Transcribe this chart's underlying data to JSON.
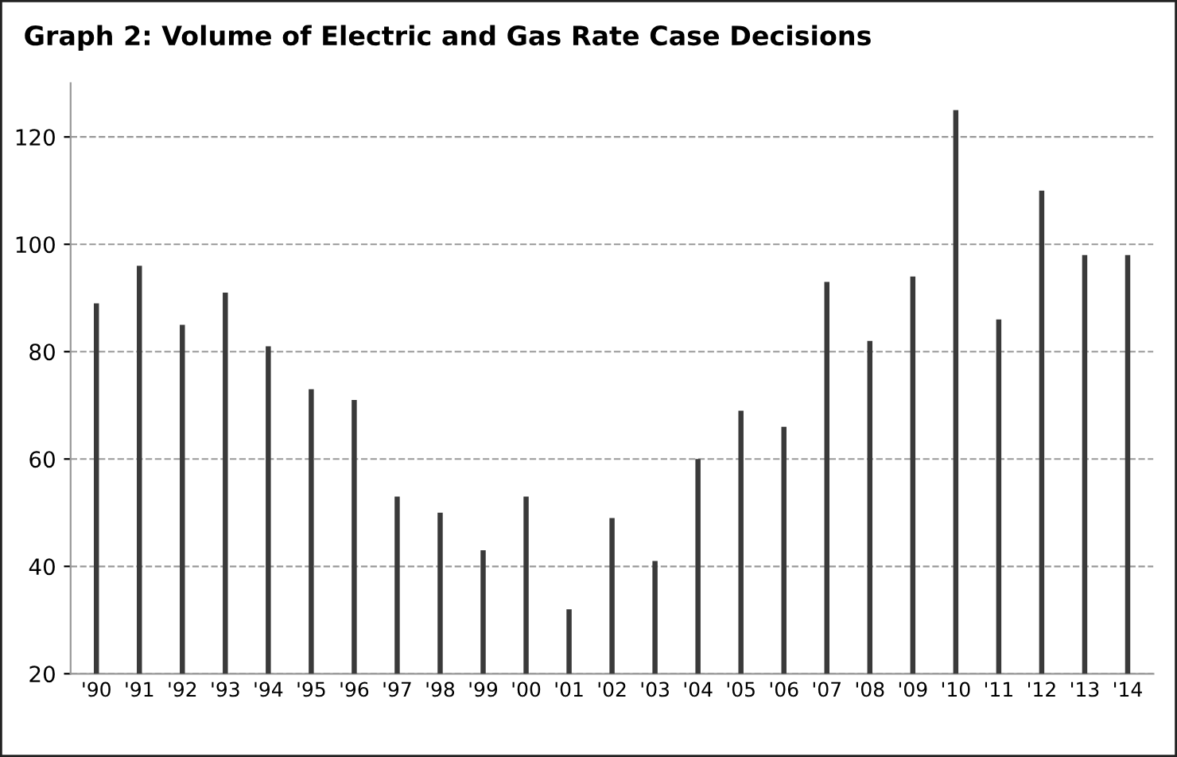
{
  "chart_data": {
    "type": "bar",
    "title": "Graph 2: Volume of Electric and Gas Rate Case Decisions",
    "categories": [
      "'90",
      "'91",
      "'92",
      "'93",
      "'94",
      "'95",
      "'96",
      "'97",
      "'98",
      "'99",
      "'00",
      "'01",
      "'02",
      "'03",
      "'04",
      "'05",
      "'06",
      "'07",
      "'08",
      "'09",
      "'10",
      "'11",
      "'12",
      "'13",
      "'14"
    ],
    "values": [
      89,
      96,
      85,
      91,
      81,
      73,
      71,
      53,
      50,
      43,
      53,
      32,
      49,
      41,
      60,
      69,
      66,
      93,
      82,
      94,
      125,
      86,
      110,
      98,
      98
    ],
    "color": "#3a3a3a",
    "ylim": [
      20,
      130
    ],
    "yticks": [
      20,
      40,
      60,
      80,
      100,
      120
    ],
    "grid": "y"
  }
}
